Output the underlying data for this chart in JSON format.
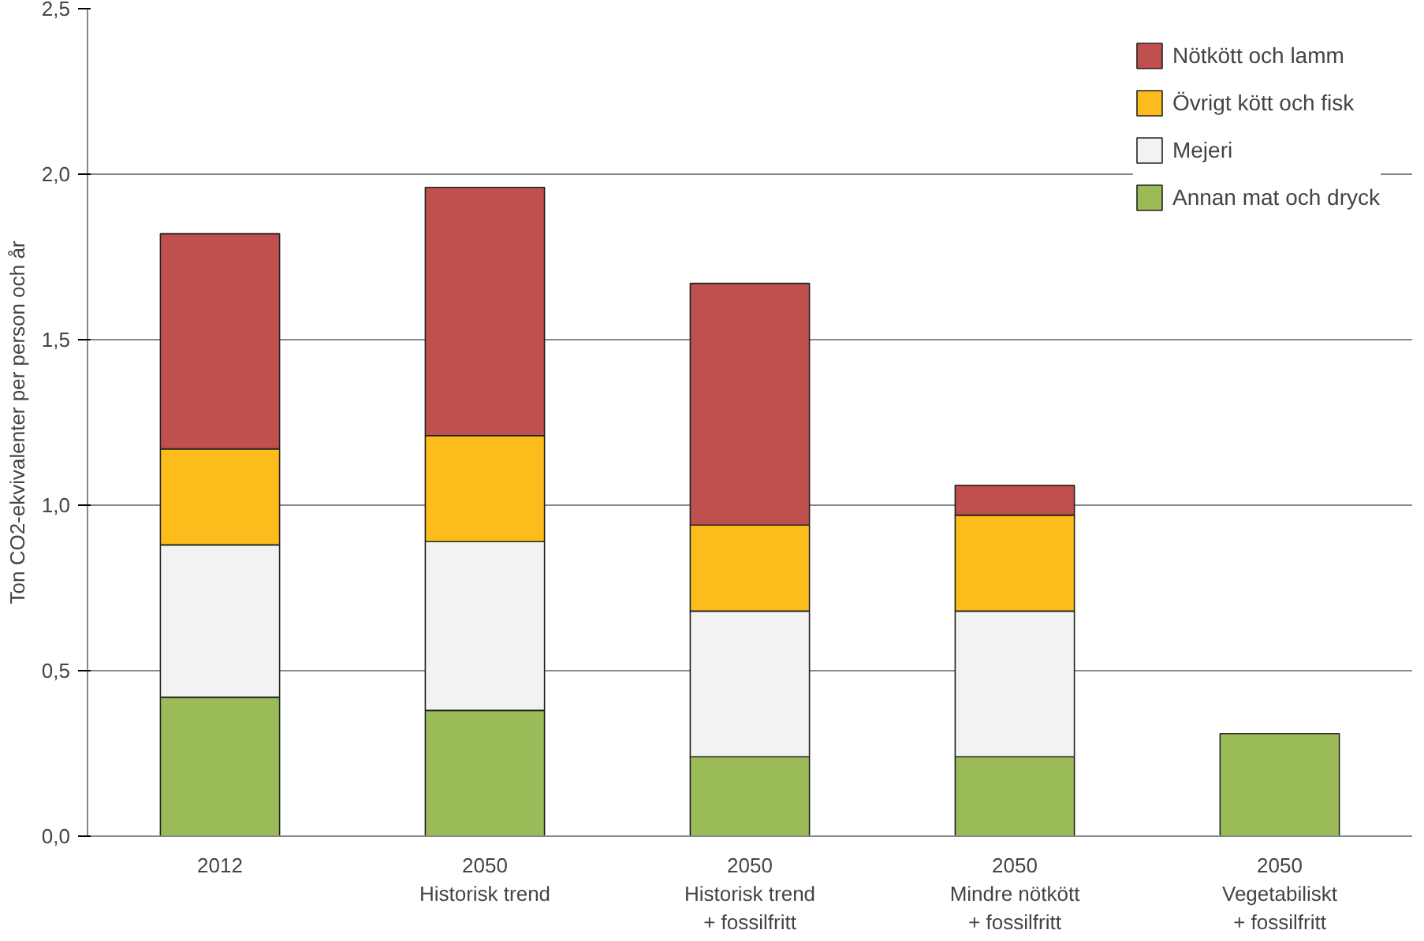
{
  "chart_data": {
    "type": "bar",
    "stacked": true,
    "ylabel": "Ton CO2-ekvivalenter per person och år",
    "categories": [
      "2012",
      "2050\nHistorisk trend",
      "2050\nHistorisk trend\n+ fossilfritt",
      "2050\nMindre nötkött\n+ fossilfritt",
      "2050\nVegetabiliskt\n+ fossilfritt"
    ],
    "series": [
      {
        "name": "Annan mat och dryck",
        "color": "#9bbb59",
        "values": [
          0.42,
          0.38,
          0.24,
          0.24,
          0.31
        ]
      },
      {
        "name": "Mejeri",
        "color": "#f2f2f2",
        "values": [
          0.46,
          0.51,
          0.44,
          0.44,
          null
        ]
      },
      {
        "name": "Övrigt kött och fisk",
        "color": "#fcbc1c",
        "values": [
          0.29,
          0.32,
          0.26,
          0.29,
          null
        ]
      },
      {
        "name": "Nötkött och lamm",
        "color": "#c0504d",
        "values": [
          0.65,
          0.75,
          0.73,
          0.09,
          null
        ]
      }
    ],
    "ylim": [
      0,
      2.5
    ],
    "yticks": [
      {
        "value": 0,
        "label": "0,0"
      },
      {
        "value": 0.5,
        "label": "0,5"
      },
      {
        "value": 1,
        "label": "1,0"
      },
      {
        "value": 1.5,
        "label": "1,5"
      },
      {
        "value": 2,
        "label": "2,0"
      },
      {
        "value": 2.5,
        "label": "2,5"
      }
    ],
    "grid": "y",
    "legend": "top right"
  }
}
